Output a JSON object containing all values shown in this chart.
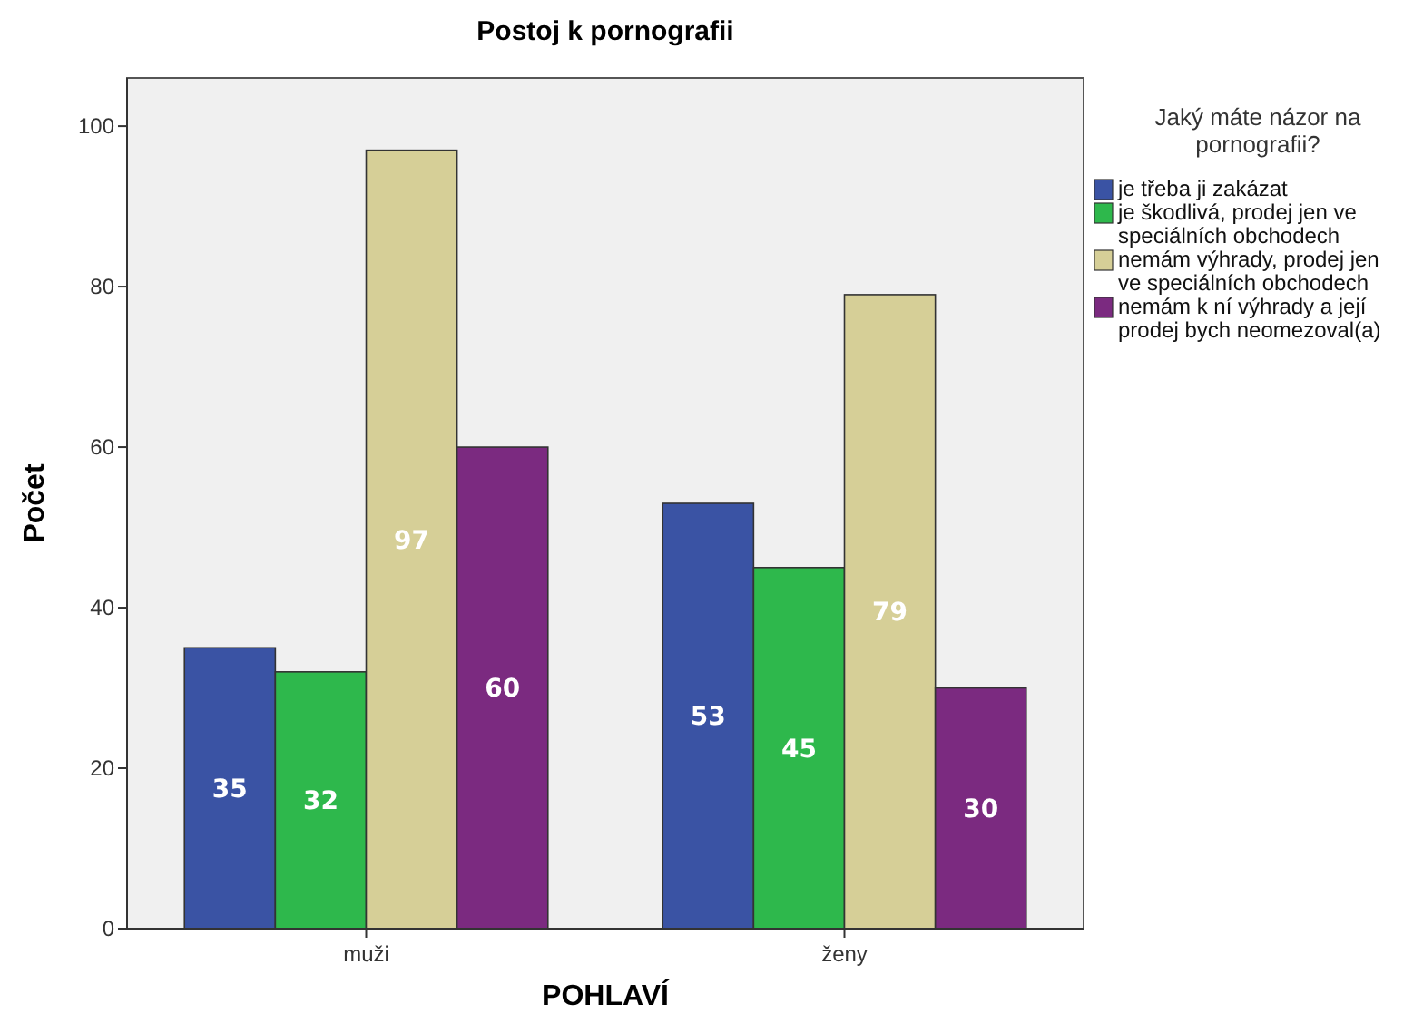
{
  "chart_data": {
    "type": "bar",
    "title": "Postoj k pornografii",
    "xlabel": "POHLAVÍ",
    "ylabel": "Počet",
    "legend_title": "Jaký máte názor na pornografii?",
    "categories": [
      "muži",
      "ženy"
    ],
    "series": [
      {
        "name": "je třeba ji zakázat",
        "color": "#3a53a4",
        "values": [
          35,
          53
        ]
      },
      {
        "name": "je škodlivá, prodej jen ve speciálních obchodech",
        "color": "#2eb84c",
        "values": [
          32,
          45
        ]
      },
      {
        "name": "nemám výhrady, prodej jen ve speciálních obchodech",
        "color": "#d6cf97",
        "values": [
          97,
          79
        ]
      },
      {
        "name": "nemám k ní výhrady a její prodej bych neomezoval(a)",
        "color": "#7b2a80",
        "values": [
          60,
          30
        ]
      }
    ],
    "ylim": [
      0,
      106
    ],
    "yticks": [
      0,
      20,
      40,
      60,
      80,
      100
    ],
    "grid": false,
    "legend": "top right",
    "data_labels": true
  }
}
